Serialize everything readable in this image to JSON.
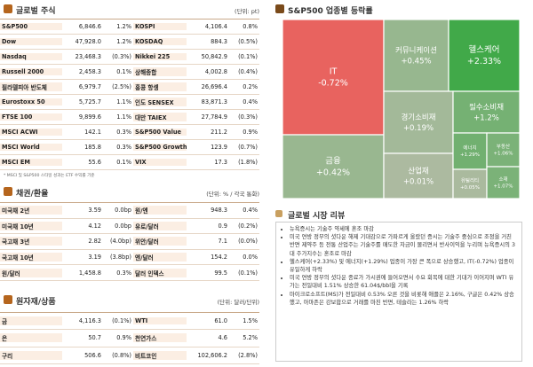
{
  "stocks": {
    "title": "글로벌 주식",
    "unit": "(단위: pt)",
    "rows": [
      [
        "S&P500",
        "6,846.6",
        "1.2%",
        "KOSPI",
        "4,106.4",
        "0.8%"
      ],
      [
        "Dow",
        "47,928.0",
        "1.2%",
        "KOSDAQ",
        "884.3",
        "(0.5%)"
      ],
      [
        "Nasdaq",
        "23,468.3",
        "(0.3%)",
        "Nikkei 225",
        "50,842.9",
        "(0.1%)"
      ],
      [
        "Russell 2000",
        "2,458.3",
        "0.1%",
        "상해종합",
        "4,002.8",
        "(0.4%)"
      ],
      [
        "필라델피아 반도체",
        "6,979.7",
        "(2.5%)",
        "홍콩 항셍",
        "26,696.4",
        "0.2%"
      ],
      [
        "Eurostoxx 50",
        "5,725.7",
        "1.1%",
        "인도 SENSEX",
        "83,871.3",
        "0.4%"
      ],
      [
        "FTSE 100",
        "9,899.6",
        "1.1%",
        "대만 TAIEX",
        "27,784.9",
        "(0.3%)"
      ],
      [
        "MSCI ACWI",
        "142.1",
        "0.3%",
        "S&P500 Value",
        "211.2",
        "0.9%"
      ],
      [
        "MSCI World",
        "185.8",
        "0.3%",
        "S&P500 Growth",
        "123.9",
        "(0.7%)"
      ],
      [
        "MSCI EM",
        "55.6",
        "0.1%",
        "VIX",
        "17.3",
        "(1.8%)"
      ]
    ],
    "note": "* MSCI 및 S&P500 스타일 성과는 ETF 수익률 기준"
  },
  "bonds_fx": {
    "title": "채권/환율",
    "unit": "(단위: % / 각국 통화)",
    "rows": [
      [
        "미국채 2년",
        "3.59",
        "0.0bp",
        "원/엔",
        "948.3",
        "0.4%"
      ],
      [
        "미국채 10년",
        "4.12",
        "0.0bp",
        "유로/달러",
        "0.9",
        "(0.2%)"
      ],
      [
        "국고채 3년",
        "2.82",
        "(4.0bp)",
        "위안/달러",
        "7.1",
        "(0.0%)"
      ],
      [
        "국고채 10년",
        "3.19",
        "(3.8bp)",
        "엔/달러",
        "154.2",
        "0.0%"
      ],
      [
        "원/달러",
        "1,458.8",
        "0.3%",
        "달러 인덱스",
        "99.5",
        "(0.1%)"
      ]
    ]
  },
  "commodities": {
    "title": "원자재/상품",
    "unit": "(단위: 달러/단위)",
    "rows": [
      [
        "금",
        "4,116.3",
        "(0.1%)",
        "WTI",
        "61.0",
        "1.5%"
      ],
      [
        "은",
        "50.7",
        "0.9%",
        "천연가스",
        "4.6",
        "5.2%"
      ],
      [
        "구리",
        "506.6",
        "(0.8%)",
        "비트코인",
        "102,606.2",
        "(2.8%)"
      ]
    ]
  },
  "sectors": {
    "title": "S&P500 업종별 등락률",
    "items": [
      {
        "name": "IT",
        "value": -0.72,
        "value_label": "-0.72%"
      },
      {
        "name": "금융",
        "value": 0.42,
        "value_label": "+0.42%"
      },
      {
        "name": "커뮤니케이션",
        "value": 0.45,
        "value_label": "+0.45%"
      },
      {
        "name": "헬스케어",
        "value": 2.33,
        "value_label": "+2.33%"
      },
      {
        "name": "경기소비재",
        "value": 0.19,
        "value_label": "+0.19%"
      },
      {
        "name": "필수소비재",
        "value": 1.2,
        "value_label": "+1.2%"
      },
      {
        "name": "산업재",
        "value": 0.01,
        "value_label": "+0.01%"
      },
      {
        "name": "에너지",
        "value": 1.29,
        "value_label": "+1.29%"
      },
      {
        "name": "부동산",
        "value": 1.06,
        "value_label": "+1.06%"
      },
      {
        "name": "유틸리티",
        "value": 0.05,
        "value_label": "+0.05%"
      },
      {
        "name": "소재",
        "value": 1.07,
        "value_label": "+1.07%"
      }
    ]
  },
  "review": {
    "title": "글로벌 시장 리뷰",
    "items": [
      "뉴욕증시는 기술주 약세에 혼조 마감",
      "미국 연방 정부의 셧다운 해제 기대감으로 가파르게 올랐던 증시는 기술주 중심으로 조정을 거친 반면 제약주 등 전통 산업주는 기술주를 매도한 자금이 몰리면서 반사이익을 누리며 뉴욕증시의 3대 주가지수는 혼조로 마감",
      "헬스케어(+2.33%) 및 에너지(+1.29%) 업종이 가장 큰 폭으로 상승했고, IT(-0.72%) 업종이 유일하게 하락",
      "미국 연방 정부의 셧다운 종료가 가시권에 들어오면서 수요 회복에 대한 기대가 이어지며 WTI 유가는 전일대비 1.51% 상승한 61.04$/bbl을 기록",
      "마이크로소프트(MS)가 전일대비 0.53% 오른 것을 비롯해 애플은 2.16%, 구글은 0.42% 상승했고, 아마존은 강보합으로 거래를 마친 반면, 테슬라는 1.26% 하락"
    ]
  }
}
